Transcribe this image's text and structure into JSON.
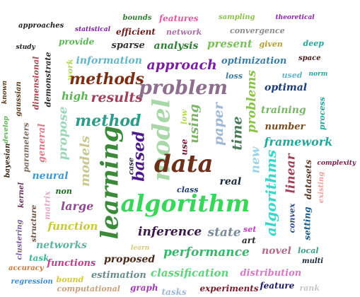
{
  "words": [
    {
      "text": "bounds",
      "color": "#2e7d32"
    },
    {
      "text": "features",
      "color": "#e05aa0"
    },
    {
      "text": "sampling",
      "color": "#8bc34a"
    },
    {
      "text": "theoretical",
      "color": "#8e24aa"
    },
    {
      "text": "approaches",
      "color": "#222222"
    },
    {
      "text": "statistical",
      "color": "#7b1fa2"
    },
    {
      "text": "efficient",
      "color": "#6d1a1a"
    },
    {
      "text": "network",
      "color": "#ad6fa8"
    },
    {
      "text": "convergence",
      "color": "#8d8d8d"
    },
    {
      "text": "provide",
      "color": "#5ab552"
    },
    {
      "text": "sparse",
      "color": "#333333"
    },
    {
      "text": "analysis",
      "color": "#2e7d32"
    },
    {
      "text": "present",
      "color": "#79c05a"
    },
    {
      "text": "given",
      "color": "#b5a030"
    },
    {
      "text": "deep",
      "color": "#26a69a"
    },
    {
      "text": "study",
      "color": "#222222"
    },
    {
      "text": "information",
      "color": "#64b5c8"
    },
    {
      "text": "approach",
      "color": "#7b1fa2"
    },
    {
      "text": "optimization",
      "color": "#3a7ca5"
    },
    {
      "text": "space",
      "color": "#4a1a1a"
    },
    {
      "text": "dimensional",
      "color": "#a1474f"
    },
    {
      "text": "demonstrate",
      "color": "#2b2b2b"
    },
    {
      "text": "work",
      "color": "#b5d65a"
    },
    {
      "text": "methods",
      "color": "#7a2e12"
    },
    {
      "text": "loss",
      "color": "#3a7ca5"
    },
    {
      "text": "used",
      "color": "#64b5c8"
    },
    {
      "text": "norm",
      "color": "#26a69a"
    },
    {
      "text": "known",
      "color": "#5a3a1a"
    },
    {
      "text": "gaussian",
      "color": "#5a3a1a"
    },
    {
      "text": "high",
      "color": "#5ab552"
    },
    {
      "text": "results",
      "color": "#a0405a"
    },
    {
      "text": "problem",
      "color": "#8d6f8d"
    },
    {
      "text": "problems",
      "color": "#8bc34a"
    },
    {
      "text": "optimal",
      "color": "#1a3a7a"
    },
    {
      "text": "training",
      "color": "#7cb56a"
    },
    {
      "text": "process",
      "color": "#26a69a"
    },
    {
      "text": "method",
      "color": "#2e9a8a"
    },
    {
      "text": "model",
      "color": "#a8d8a8"
    },
    {
      "text": "low",
      "color": "#b5d65a"
    },
    {
      "text": "using",
      "color": "#7cb56a"
    },
    {
      "text": "paper",
      "color": "#9fb8d6"
    },
    {
      "text": "time",
      "color": "#4a7a5a"
    },
    {
      "text": "number",
      "color": "#7a4a1a"
    },
    {
      "text": "develop",
      "color": "#5ab552"
    },
    {
      "text": "parameters",
      "color": "#7a6a5a"
    },
    {
      "text": "general",
      "color": "#e07a8a"
    },
    {
      "text": "propose",
      "color": "#9ad6b8"
    },
    {
      "text": "learning",
      "color": "#3a8a3a"
    },
    {
      "text": "based",
      "color": "#4a1a8a"
    },
    {
      "text": "framework",
      "color": "#26a69a"
    },
    {
      "text": "bayesian",
      "color": "#3a2a1a"
    },
    {
      "text": "models",
      "color": "#c8c890"
    },
    {
      "text": "case",
      "color": "#2a2a3a"
    },
    {
      "text": "use",
      "color": "#7a1a3a"
    },
    {
      "text": "data",
      "color": "#6d2e1a"
    },
    {
      "text": "new",
      "color": "#9ad6e8"
    },
    {
      "text": "linear",
      "color": "#a0405a"
    },
    {
      "text": "complexity",
      "color": "#7a1a4a"
    },
    {
      "text": "neural",
      "color": "#3a9ad6"
    },
    {
      "text": "datasets",
      "color": "#5a3a2a"
    },
    {
      "text": "existing",
      "color": "#f0a0a0"
    },
    {
      "text": "real",
      "color": "#1a2a3a"
    },
    {
      "text": "kernel",
      "color": "#6a2a5a"
    },
    {
      "text": "matrix",
      "color": "#e0a8c8"
    },
    {
      "text": "non",
      "color": "#1a6a1a"
    },
    {
      "text": "class",
      "color": "#1a3a7a"
    },
    {
      "text": "algorithms",
      "color": "#3ad6c8"
    },
    {
      "text": "large",
      "color": "#8d4a8d"
    },
    {
      "text": "algorithm",
      "color": "#3ad65a"
    },
    {
      "text": "structure",
      "color": "#6a4a3a"
    },
    {
      "text": "convex",
      "color": "#2a4a8a"
    },
    {
      "text": "setting",
      "color": "#1a5a8a"
    },
    {
      "text": "function",
      "color": "#c8c83a"
    },
    {
      "text": "inference",
      "color": "#3a1a4a"
    },
    {
      "text": "state",
      "color": "#7a8a9a"
    },
    {
      "text": "set",
      "color": "#c83ac8"
    },
    {
      "text": "clustering",
      "color": "#7a5a9a"
    },
    {
      "text": "networks",
      "color": "#5ab5a0"
    },
    {
      "text": "art",
      "color": "#2a2a2a"
    },
    {
      "text": "learn",
      "color": "#d6c87a"
    },
    {
      "text": "local",
      "color": "#3aa08a"
    },
    {
      "text": "performance",
      "color": "#3ab56a"
    },
    {
      "text": "novel",
      "color": "#b56a8a"
    },
    {
      "text": "task",
      "color": "#3ab59a"
    },
    {
      "text": "proposed",
      "color": "#4a2a1a"
    },
    {
      "text": "multi",
      "color": "#1a2a3a"
    },
    {
      "text": "functions",
      "color": "#c83a8a"
    },
    {
      "text": "accuracy",
      "color": "#c87a3a"
    },
    {
      "text": "classification",
      "color": "#5ad67a"
    },
    {
      "text": "estimation",
      "color": "#6a8a8a"
    },
    {
      "text": "distribution",
      "color": "#d67ac8"
    },
    {
      "text": "bound",
      "color": "#d6c83a"
    },
    {
      "text": "regression",
      "color": "#3a8ad6"
    },
    {
      "text": "feature",
      "color": "#1a1a6a"
    },
    {
      "text": "computational",
      "color": "#c8a07a"
    },
    {
      "text": "graph",
      "color": "#a03ab5"
    },
    {
      "text": "experiments",
      "color": "#7a1a2a"
    },
    {
      "text": "rank",
      "color": "#c8c8c8"
    },
    {
      "text": "tasks",
      "color": "#9fb8d6"
    }
  ]
}
